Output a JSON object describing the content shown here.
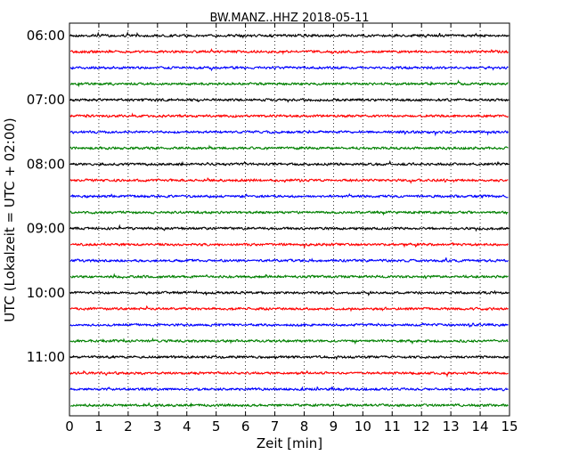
{
  "chart_data": {
    "type": "line",
    "title": "BW.MANZ..HHZ 2018-05-11",
    "xlabel": "Zeit  [min]",
    "ylabel": "UTC (Lokalzeit = UTC + 02:00)",
    "xlim": [
      0,
      15
    ],
    "xticks": [
      0,
      1,
      2,
      3,
      4,
      5,
      6,
      7,
      8,
      9,
      10,
      11,
      12,
      13,
      14,
      15
    ],
    "xtick_labels": [
      "0",
      "1",
      "2",
      "3",
      "4",
      "5",
      "6",
      "7",
      "8",
      "9",
      "10",
      "11",
      "12",
      "13",
      "14",
      "15"
    ],
    "y_start_time": "06:00",
    "trace_interval_min": 15,
    "trace_count": 24,
    "yticks": [
      "06:00",
      "07:00",
      "08:00",
      "09:00",
      "10:00",
      "11:00"
    ],
    "trace_colors": [
      "#000000",
      "#ff0000",
      "#0000ff",
      "#008000"
    ],
    "grid": "vertical-dotted"
  }
}
